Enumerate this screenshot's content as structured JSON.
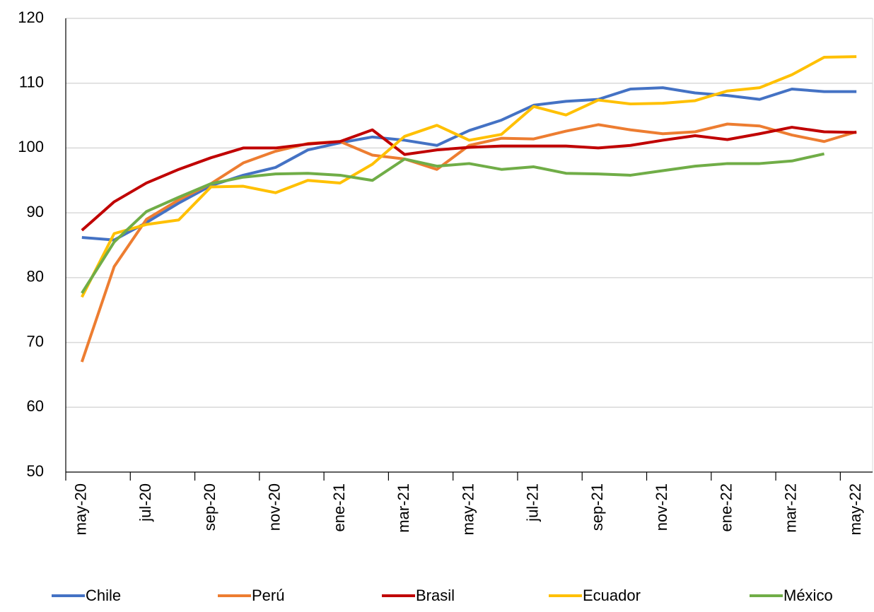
{
  "chart_data": {
    "type": "line",
    "categories": [
      "may-20",
      null,
      "jul-20",
      null,
      "sep-20",
      null,
      "nov-20",
      null,
      "ene-21",
      null,
      "mar-21",
      null,
      "may-21",
      null,
      "jul-21",
      null,
      "sep-21",
      null,
      "nov-21",
      null,
      "ene-22",
      null,
      "mar-22",
      null,
      "may-22"
    ],
    "series": [
      {
        "name": "Chile",
        "color": "#4472c4",
        "values": [
          86.2,
          85.8,
          88.5,
          91.5,
          94.2,
          95.8,
          97,
          99.7,
          100.8,
          101.7,
          101.2,
          100.4,
          102.7,
          104.3,
          106.6,
          107.2,
          107.5,
          109.1,
          109.3,
          108.5,
          108.1,
          107.5,
          109.1,
          108.7,
          108.7
        ]
      },
      {
        "name": "Perú",
        "color": "#ed7d31",
        "values": [
          67,
          81.7,
          89,
          92,
          94.5,
          97.7,
          99.5,
          100.7,
          101,
          98.9,
          98.3,
          96.7,
          100.4,
          101.5,
          101.4,
          102.6,
          103.6,
          102.8,
          102.2,
          102.5,
          103.7,
          103.4,
          102,
          101,
          102.5
        ]
      },
      {
        "name": "Brasil",
        "color": "#c00000",
        "values": [
          87.3,
          91.7,
          94.6,
          96.7,
          98.5,
          100,
          100,
          100.6,
          101,
          102.8,
          99,
          99.7,
          100.1,
          100.3,
          100.3,
          100.3,
          100,
          100.4,
          101.2,
          101.9,
          101.3,
          102.2,
          103.2,
          102.5,
          102.4
        ]
      },
      {
        "name": "Ecuador",
        "color": "#ffc000",
        "values": [
          77,
          86.8,
          88.2,
          88.9,
          94,
          94.1,
          93.1,
          95,
          94.6,
          97.5,
          101.8,
          103.5,
          101.2,
          102.1,
          106.4,
          105.1,
          107.4,
          106.8,
          106.9,
          107.3,
          108.8,
          109.3,
          111.3,
          114,
          114.1
        ]
      },
      {
        "name": "México",
        "color": "#70ad47",
        "values": [
          77.6,
          85.5,
          90.2,
          92.4,
          94.5,
          95.5,
          96,
          96.1,
          95.8,
          95,
          98.3,
          97.2,
          97.6,
          96.7,
          97.1,
          96.1,
          96,
          95.8,
          96.5,
          97.2,
          97.6,
          97.6,
          98,
          99.1,
          null
        ]
      }
    ],
    "ylim": [
      50,
      120
    ],
    "yticks": [
      50,
      60,
      70,
      80,
      90,
      100,
      110,
      120
    ],
    "grid": true,
    "legend": "bottom"
  }
}
